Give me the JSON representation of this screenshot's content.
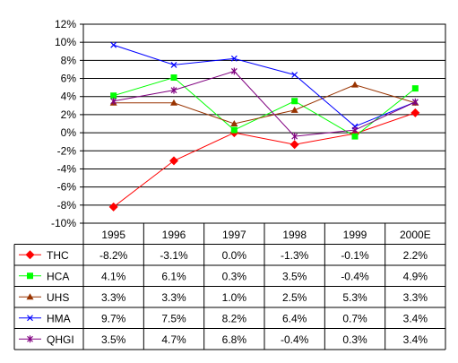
{
  "chart_data": {
    "type": "line",
    "categories": [
      "1995",
      "1996",
      "1997",
      "1998",
      "1999",
      "2000E"
    ],
    "ylim": [
      -10,
      12
    ],
    "yticks": [
      -10,
      -8,
      -6,
      -4,
      -2,
      0,
      2,
      4,
      6,
      8,
      10,
      12
    ],
    "ytick_labels": [
      "-10%",
      "-8%",
      "-6%",
      "-4%",
      "-2%",
      "0%",
      "2%",
      "4%",
      "6%",
      "8%",
      "10%",
      "12%"
    ],
    "grid": true,
    "legend": "data-table",
    "series": [
      {
        "name": "THC",
        "color": "#ff0000",
        "marker": "diamond",
        "values": [
          -8.2,
          -3.1,
          0.0,
          -1.3,
          -0.1,
          2.2
        ],
        "labels": [
          "-8.2%",
          "-3.1%",
          "0.0%",
          "-1.3%",
          "-0.1%",
          "2.2%"
        ]
      },
      {
        "name": "HCA",
        "color": "#00ff00",
        "marker": "square",
        "values": [
          4.1,
          6.1,
          0.3,
          3.5,
          -0.4,
          4.9
        ],
        "labels": [
          "4.1%",
          "6.1%",
          "0.3%",
          "3.5%",
          "-0.4%",
          "4.9%"
        ]
      },
      {
        "name": "UHS",
        "color": "#993300",
        "marker": "triangle",
        "values": [
          3.3,
          3.3,
          1.0,
          2.5,
          5.3,
          3.3
        ],
        "labels": [
          "3.3%",
          "3.3%",
          "1.0%",
          "2.5%",
          "5.3%",
          "3.3%"
        ]
      },
      {
        "name": "HMA",
        "color": "#0000ff",
        "marker": "x",
        "values": [
          9.7,
          7.5,
          8.2,
          6.4,
          0.7,
          3.4
        ],
        "labels": [
          "9.7%",
          "7.5%",
          "8.2%",
          "6.4%",
          "0.7%",
          "3.4%"
        ]
      },
      {
        "name": "QHGI",
        "color": "#800080",
        "marker": "star",
        "values": [
          3.5,
          4.7,
          6.8,
          -0.4,
          0.3,
          3.4
        ],
        "labels": [
          "3.5%",
          "4.7%",
          "6.8%",
          "-0.4%",
          "0.3%",
          "3.4%"
        ]
      }
    ]
  }
}
